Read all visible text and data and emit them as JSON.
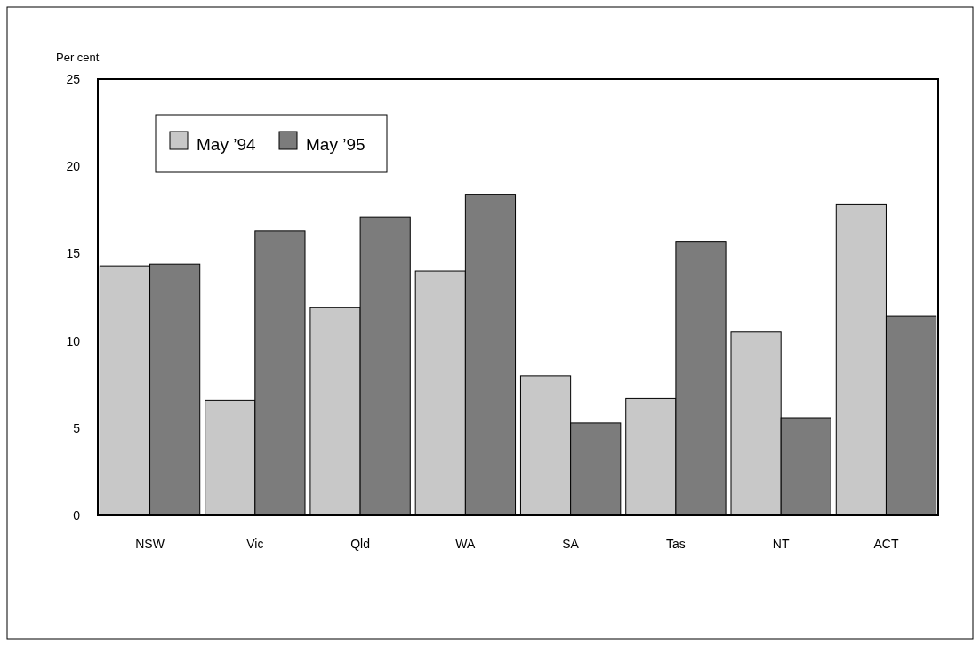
{
  "chart_data": {
    "type": "bar",
    "ylabel": "Per cent",
    "categories": [
      "NSW",
      "Vic",
      "Qld",
      "WA",
      "SA",
      "Tas",
      "NT",
      "ACT"
    ],
    "series": [
      {
        "name": "May ’94",
        "color": "#c8c8c8",
        "values": [
          14.3,
          6.6,
          11.9,
          14.0,
          8.0,
          6.7,
          10.5,
          17.8
        ]
      },
      {
        "name": "May ’95",
        "color": "#7c7c7c",
        "values": [
          14.4,
          16.3,
          17.1,
          18.4,
          5.3,
          15.7,
          5.6,
          11.4
        ]
      }
    ],
    "ylim": [
      0,
      25
    ],
    "yticks": [
      0,
      5,
      10,
      15,
      20,
      25
    ],
    "grid": false,
    "legend": "top left"
  }
}
